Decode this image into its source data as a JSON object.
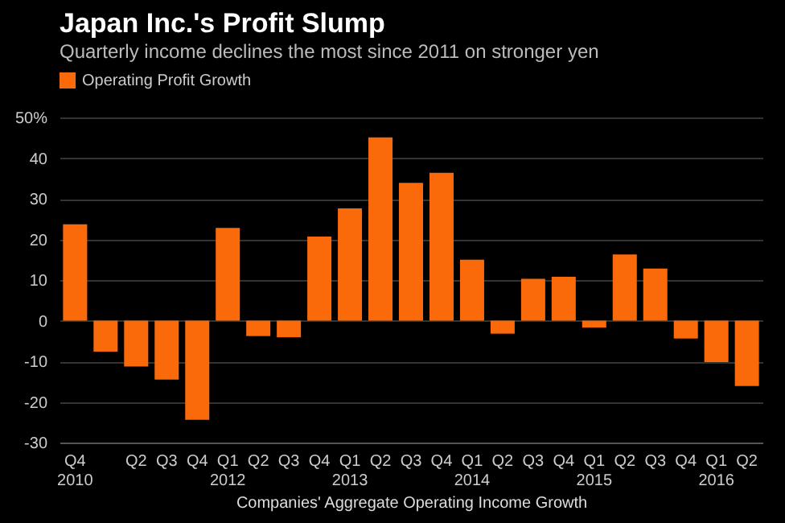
{
  "chart_data": {
    "type": "bar",
    "title": "Japan Inc.'s Profit Slump",
    "subtitle": "Quarterly income declines the most since 2011 on stronger yen",
    "xlabel": "Companies' Aggregate Operating Income Growth",
    "categories": [
      "Q4 2010",
      null,
      "Q2",
      "Q3",
      "Q4",
      "Q1 2012",
      "Q2",
      "Q3",
      "Q4",
      "Q1 2013",
      "Q2",
      "Q3",
      "Q4",
      "Q1 2014",
      "Q2",
      "Q3",
      "Q4",
      "Q1 2015",
      "Q2",
      "Q3",
      "Q4",
      "Q1 2016",
      "Q2"
    ],
    "series": [
      {
        "name": "Operating Profit Growth",
        "color": "#fb6a0a",
        "values": [
          23.7,
          -7.6,
          -11.3,
          -14.5,
          -24.4,
          22.8,
          -3.8,
          -4.1,
          20.7,
          27.6,
          45.1,
          33.9,
          36.4,
          15.0,
          -3.2,
          10.3,
          10.8,
          -1.7,
          16.3,
          12.8,
          -4.4,
          -10.2,
          -16.1
        ]
      }
    ],
    "ylim": [
      -30,
      50
    ],
    "yticks": [
      -30,
      -20,
      -10,
      0,
      10,
      20,
      30,
      40,
      {
        "value": 50,
        "label": "50%"
      }
    ],
    "grid": "y",
    "legend": "top left"
  }
}
